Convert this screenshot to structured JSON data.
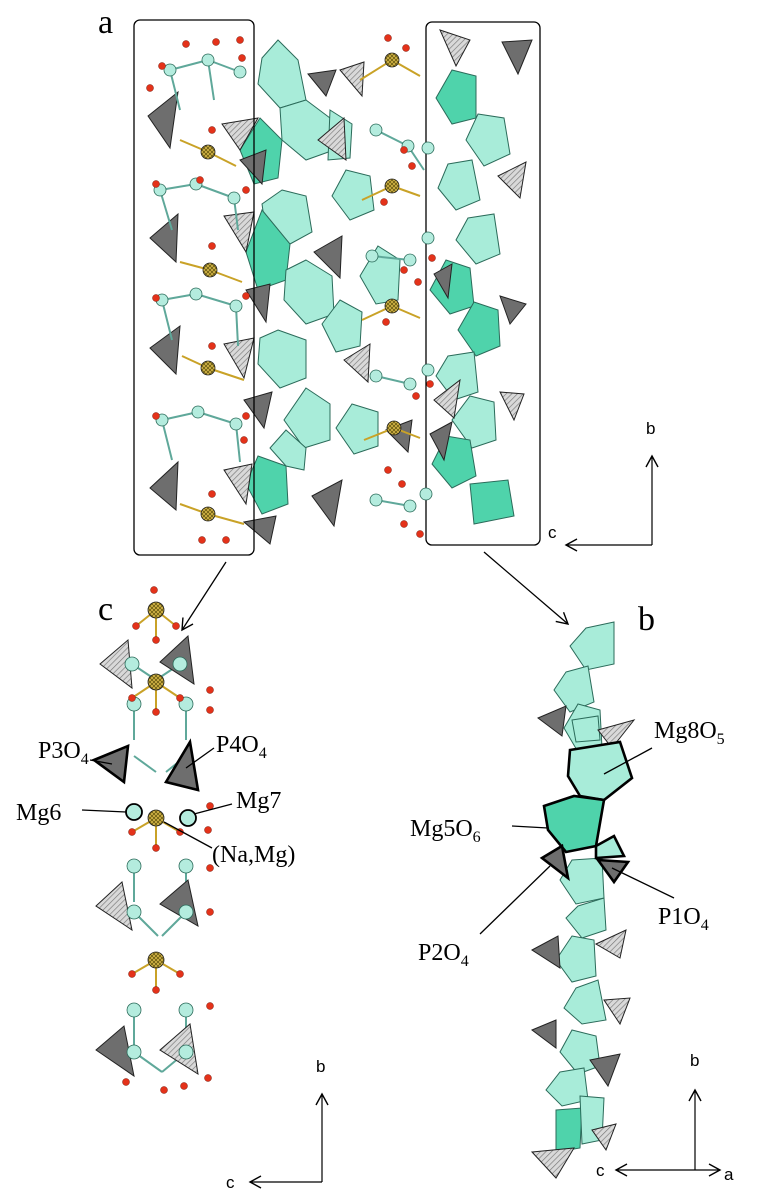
{
  "panels": {
    "a": "a",
    "b": "b",
    "c": "c"
  },
  "axes": {
    "panel_a": {
      "vertical": "b",
      "horizontal": "c"
    },
    "panel_b": {
      "vertical": "b",
      "horizontal": "c",
      "depth": "a"
    },
    "panel_c": {
      "vertical": "b",
      "horizontal": "c"
    }
  },
  "labels": {
    "p3o4": {
      "base": "P3O",
      "sub": "4"
    },
    "p4o4": {
      "base": "P4O",
      "sub": "4"
    },
    "mg6": "Mg6",
    "mg7": "Mg7",
    "na_mg": "(Na,Mg)",
    "mg8o5": {
      "base": "Mg8O",
      "sub": "5"
    },
    "mg5o6": {
      "base": "Mg5O",
      "sub": "6"
    },
    "p1o4": {
      "base": "P1O",
      "sub": "4"
    },
    "p2o4": {
      "base": "P2O",
      "sub": "4"
    }
  },
  "colors": {
    "mg_octahedron": "#a8ecd9",
    "mg_octahedron_dark": "#3fcfa4",
    "p_tetrahedron": "#6e6e6e",
    "p_tetrahedron_hatch": "#bdbdbd",
    "oxygen": "#e4321a",
    "mg_atom": "#b4ecde",
    "na_atom": "#d8b94a",
    "bond_mg": "#5fa89a",
    "bond_na": "#c9a227"
  }
}
